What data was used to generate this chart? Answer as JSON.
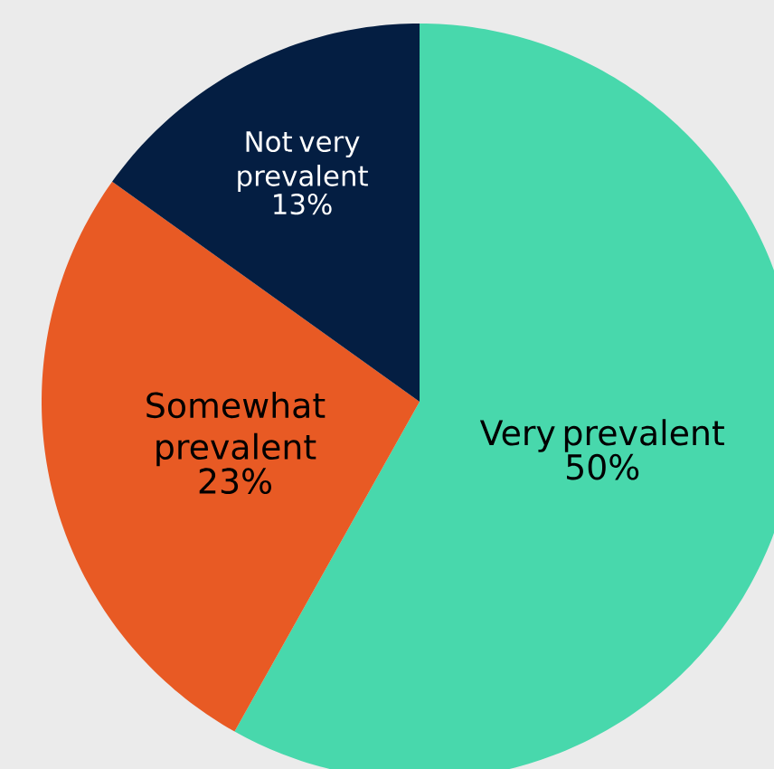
{
  "chart_data": {
    "type": "pie",
    "categories": [
      "Very prevalent",
      "Somewhat prevalent",
      "Not very prevalent"
    ],
    "values": [
      50,
      23,
      13
    ],
    "value_labels": [
      "50%",
      "23%",
      "13%"
    ],
    "colors": [
      "#48d8ac",
      "#e85a24",
      "#041e42"
    ]
  }
}
